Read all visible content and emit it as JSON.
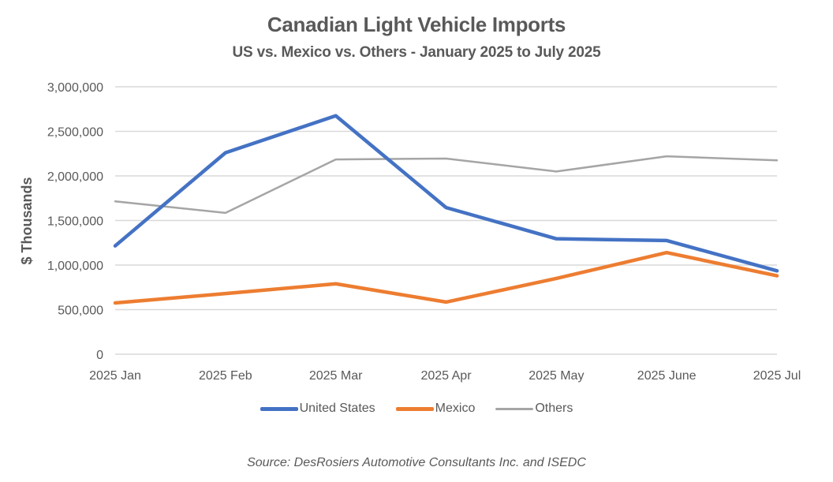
{
  "chart_data": {
    "type": "line",
    "title": "Canadian Light Vehicle Imports",
    "subtitle": "US vs. Mexico vs. Others - January 2025 to July 2025",
    "xlabel": "",
    "ylabel": "$ Thousands",
    "ylim": [
      0,
      3000000
    ],
    "yticks": [
      0,
      500000,
      1000000,
      1500000,
      2000000,
      2500000,
      3000000
    ],
    "ytick_labels": [
      "0",
      "500,000",
      "1,000,000",
      "1,500,000",
      "2,000,000",
      "2,500,000",
      "3,000,000"
    ],
    "categories": [
      "2025 Jan",
      "2025 Feb",
      "2025 Mar",
      "2025 Apr",
      "2025 May",
      "2025 June",
      "2025 Jul"
    ],
    "grid": true,
    "legend_position": "bottom",
    "series": [
      {
        "name": "United States",
        "color": "#4472C4",
        "values": [
          1215000,
          2260000,
          2675000,
          1645000,
          1295000,
          1275000,
          935000
        ]
      },
      {
        "name": "Mexico",
        "color": "#ED7D31",
        "values": [
          575000,
          680000,
          790000,
          585000,
          850000,
          1140000,
          880000
        ]
      },
      {
        "name": "Others",
        "color": "#A5A5A5",
        "values": [
          1715000,
          1585000,
          2185000,
          2195000,
          2050000,
          2220000,
          2175000
        ]
      }
    ],
    "source": "Source: DesRosiers Automotive Consultants Inc. and ISEDC"
  }
}
